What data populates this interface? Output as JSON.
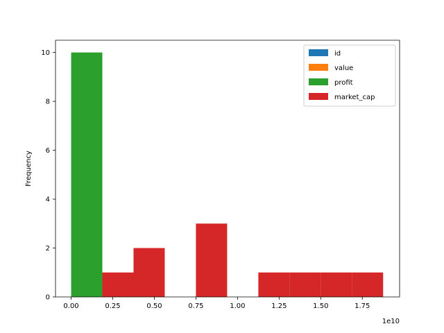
{
  "chart_data": {
    "type": "bar",
    "title": "",
    "xlabel": "",
    "ylabel": "Frequency",
    "x_offset_label": "1e10",
    "xlim": [
      -0.094,
      1.974
    ],
    "ylim": [
      0,
      10.5
    ],
    "x_ticks": [
      0.0,
      0.25,
      0.5,
      0.75,
      1.0,
      1.25,
      1.5,
      1.75
    ],
    "x_tick_labels": [
      "0.00",
      "0.25",
      "0.50",
      "0.75",
      "1.00",
      "1.25",
      "1.50",
      "1.75"
    ],
    "y_ticks": [
      0,
      2,
      4,
      6,
      8,
      10
    ],
    "y_tick_labels": [
      "0",
      "2",
      "4",
      "6",
      "8",
      "10"
    ],
    "grid": false,
    "legend_position": "top-right",
    "series": [
      {
        "name": "id",
        "color": "#1f77b4",
        "bins": []
      },
      {
        "name": "value",
        "color": "#ff7f0e",
        "bins": []
      },
      {
        "name": "profit",
        "color": "#2ca02c",
        "bins": [
          {
            "x0": 0.0,
            "x1": 0.1875,
            "count": 10
          }
        ]
      },
      {
        "name": "market_cap",
        "color": "#d62728",
        "bins": [
          {
            "x0": 0.1875,
            "x1": 0.375,
            "count": 1
          },
          {
            "x0": 0.375,
            "x1": 0.5625,
            "count": 2
          },
          {
            "x0": 0.5625,
            "x1": 0.75,
            "count": 0
          },
          {
            "x0": 0.75,
            "x1": 0.9375,
            "count": 3
          },
          {
            "x0": 0.9375,
            "x1": 1.125,
            "count": 0
          },
          {
            "x0": 1.125,
            "x1": 1.3125,
            "count": 1
          },
          {
            "x0": 1.3125,
            "x1": 1.5,
            "count": 1
          },
          {
            "x0": 1.5,
            "x1": 1.6875,
            "count": 1
          },
          {
            "x0": 1.6875,
            "x1": 1.875,
            "count": 1
          }
        ]
      }
    ]
  }
}
